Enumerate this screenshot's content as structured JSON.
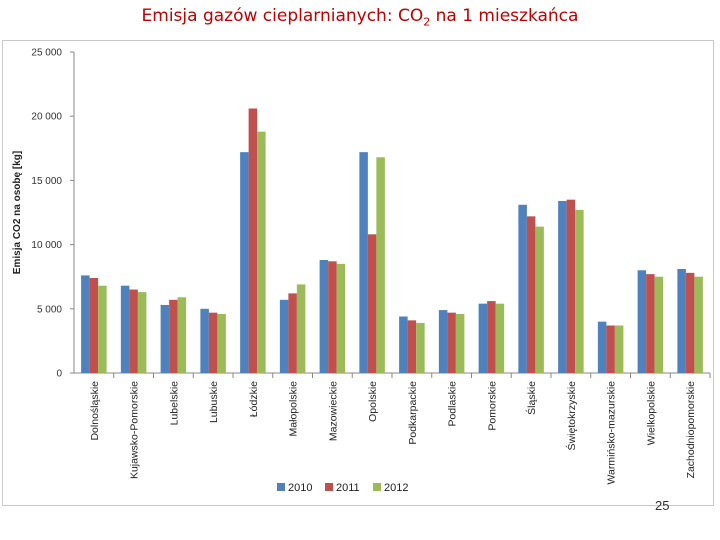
{
  "title_main": "Emisja gazów cieplarnianych: CO",
  "title_sub": "2",
  "title_rest": " na 1 mieszkańca",
  "page_number": "25",
  "colors": {
    "2010": "#4f81bd",
    "2011": "#c0504d",
    "2012": "#9bbb59"
  },
  "chart_data": {
    "type": "bar",
    "title": "Emisja gazów cieplarnianych: CO2 na 1 mieszkańca",
    "ylabel": "Emisja CO2 na osobę [kg]",
    "xlabel": "",
    "ylim": [
      0,
      25000
    ],
    "yticks": [
      0,
      5000,
      10000,
      15000,
      20000,
      25000
    ],
    "ytick_labels": [
      "0",
      "5 000",
      "10 000",
      "15 000",
      "20 000",
      "25 000"
    ],
    "grid": false,
    "legend_position": "bottom",
    "categories": [
      "Dolnośląskie",
      "Kujawsko-Pomorskie",
      "Lubelskie",
      "Lubuskie",
      "Łódzkie",
      "Małopolskie",
      "Mazowieckie",
      "Opolskie",
      "Podkarpackie",
      "Podlaskie",
      "Pomorskie",
      "Śląskie",
      "Świętokrzyskie",
      "Warmińsko-mazurskie",
      "Wielkopolskie",
      "Zachodniopomorskie"
    ],
    "series": [
      {
        "name": "2010",
        "values": [
          7600,
          6800,
          5300,
          5000,
          17200,
          5700,
          8800,
          17200,
          4400,
          4900,
          5400,
          13100,
          13400,
          4000,
          8000,
          8100
        ]
      },
      {
        "name": "2011",
        "values": [
          7400,
          6500,
          5700,
          4700,
          20600,
          6200,
          8700,
          10800,
          4100,
          4700,
          5600,
          12200,
          13500,
          3700,
          7700,
          7800
        ]
      },
      {
        "name": "2012",
        "values": [
          6800,
          6300,
          5900,
          4600,
          18800,
          6900,
          8500,
          16800,
          3900,
          4600,
          5400,
          11400,
          12700,
          3700,
          7500,
          7500
        ]
      }
    ]
  }
}
